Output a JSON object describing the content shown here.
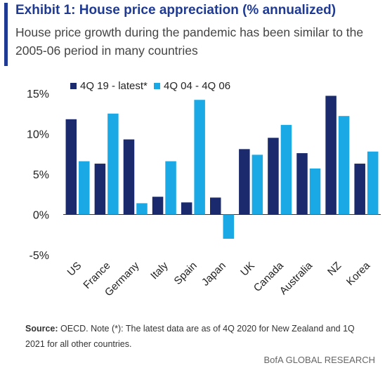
{
  "header": {
    "title": "Exhibit 1: House price appreciation (% annualized)",
    "subtitle": "House price growth during the pandemic has been similar to the 2005-06 period in many countries"
  },
  "colors": {
    "series1": "#1a2a6c",
    "series2": "#1ba9e6",
    "accent": "#1f3a93"
  },
  "chart_data": {
    "type": "bar",
    "categories": [
      "US",
      "France",
      "Germany",
      "Italy",
      "Spain",
      "Japan",
      "UK",
      "Canada",
      "Australia",
      "NZ",
      "Korea"
    ],
    "series": [
      {
        "name": "4Q 19 - latest*",
        "values": [
          11.8,
          6.3,
          9.3,
          2.2,
          1.5,
          2.1,
          8.1,
          9.5,
          7.6,
          14.7,
          6.3
        ]
      },
      {
        "name": "4Q 04 - 4Q 06",
        "values": [
          6.6,
          12.5,
          1.4,
          6.6,
          14.2,
          -3.0,
          7.4,
          11.1,
          5.7,
          12.2,
          7.8
        ]
      }
    ],
    "yticks": [
      "15%",
      "10%",
      "5%",
      "0%",
      "-5%"
    ],
    "ytick_values": [
      15,
      10,
      5,
      0,
      -5
    ],
    "ylim": [
      -5,
      15
    ],
    "legend_position": "top-left",
    "grid": false
  },
  "footer": {
    "source_label": "Source:",
    "source_text": "OECD. Note (*): The latest data are as of 4Q 2020 for New Zealand and 1Q 2021 for all other countries.",
    "brand": "BofA GLOBAL RESEARCH"
  }
}
